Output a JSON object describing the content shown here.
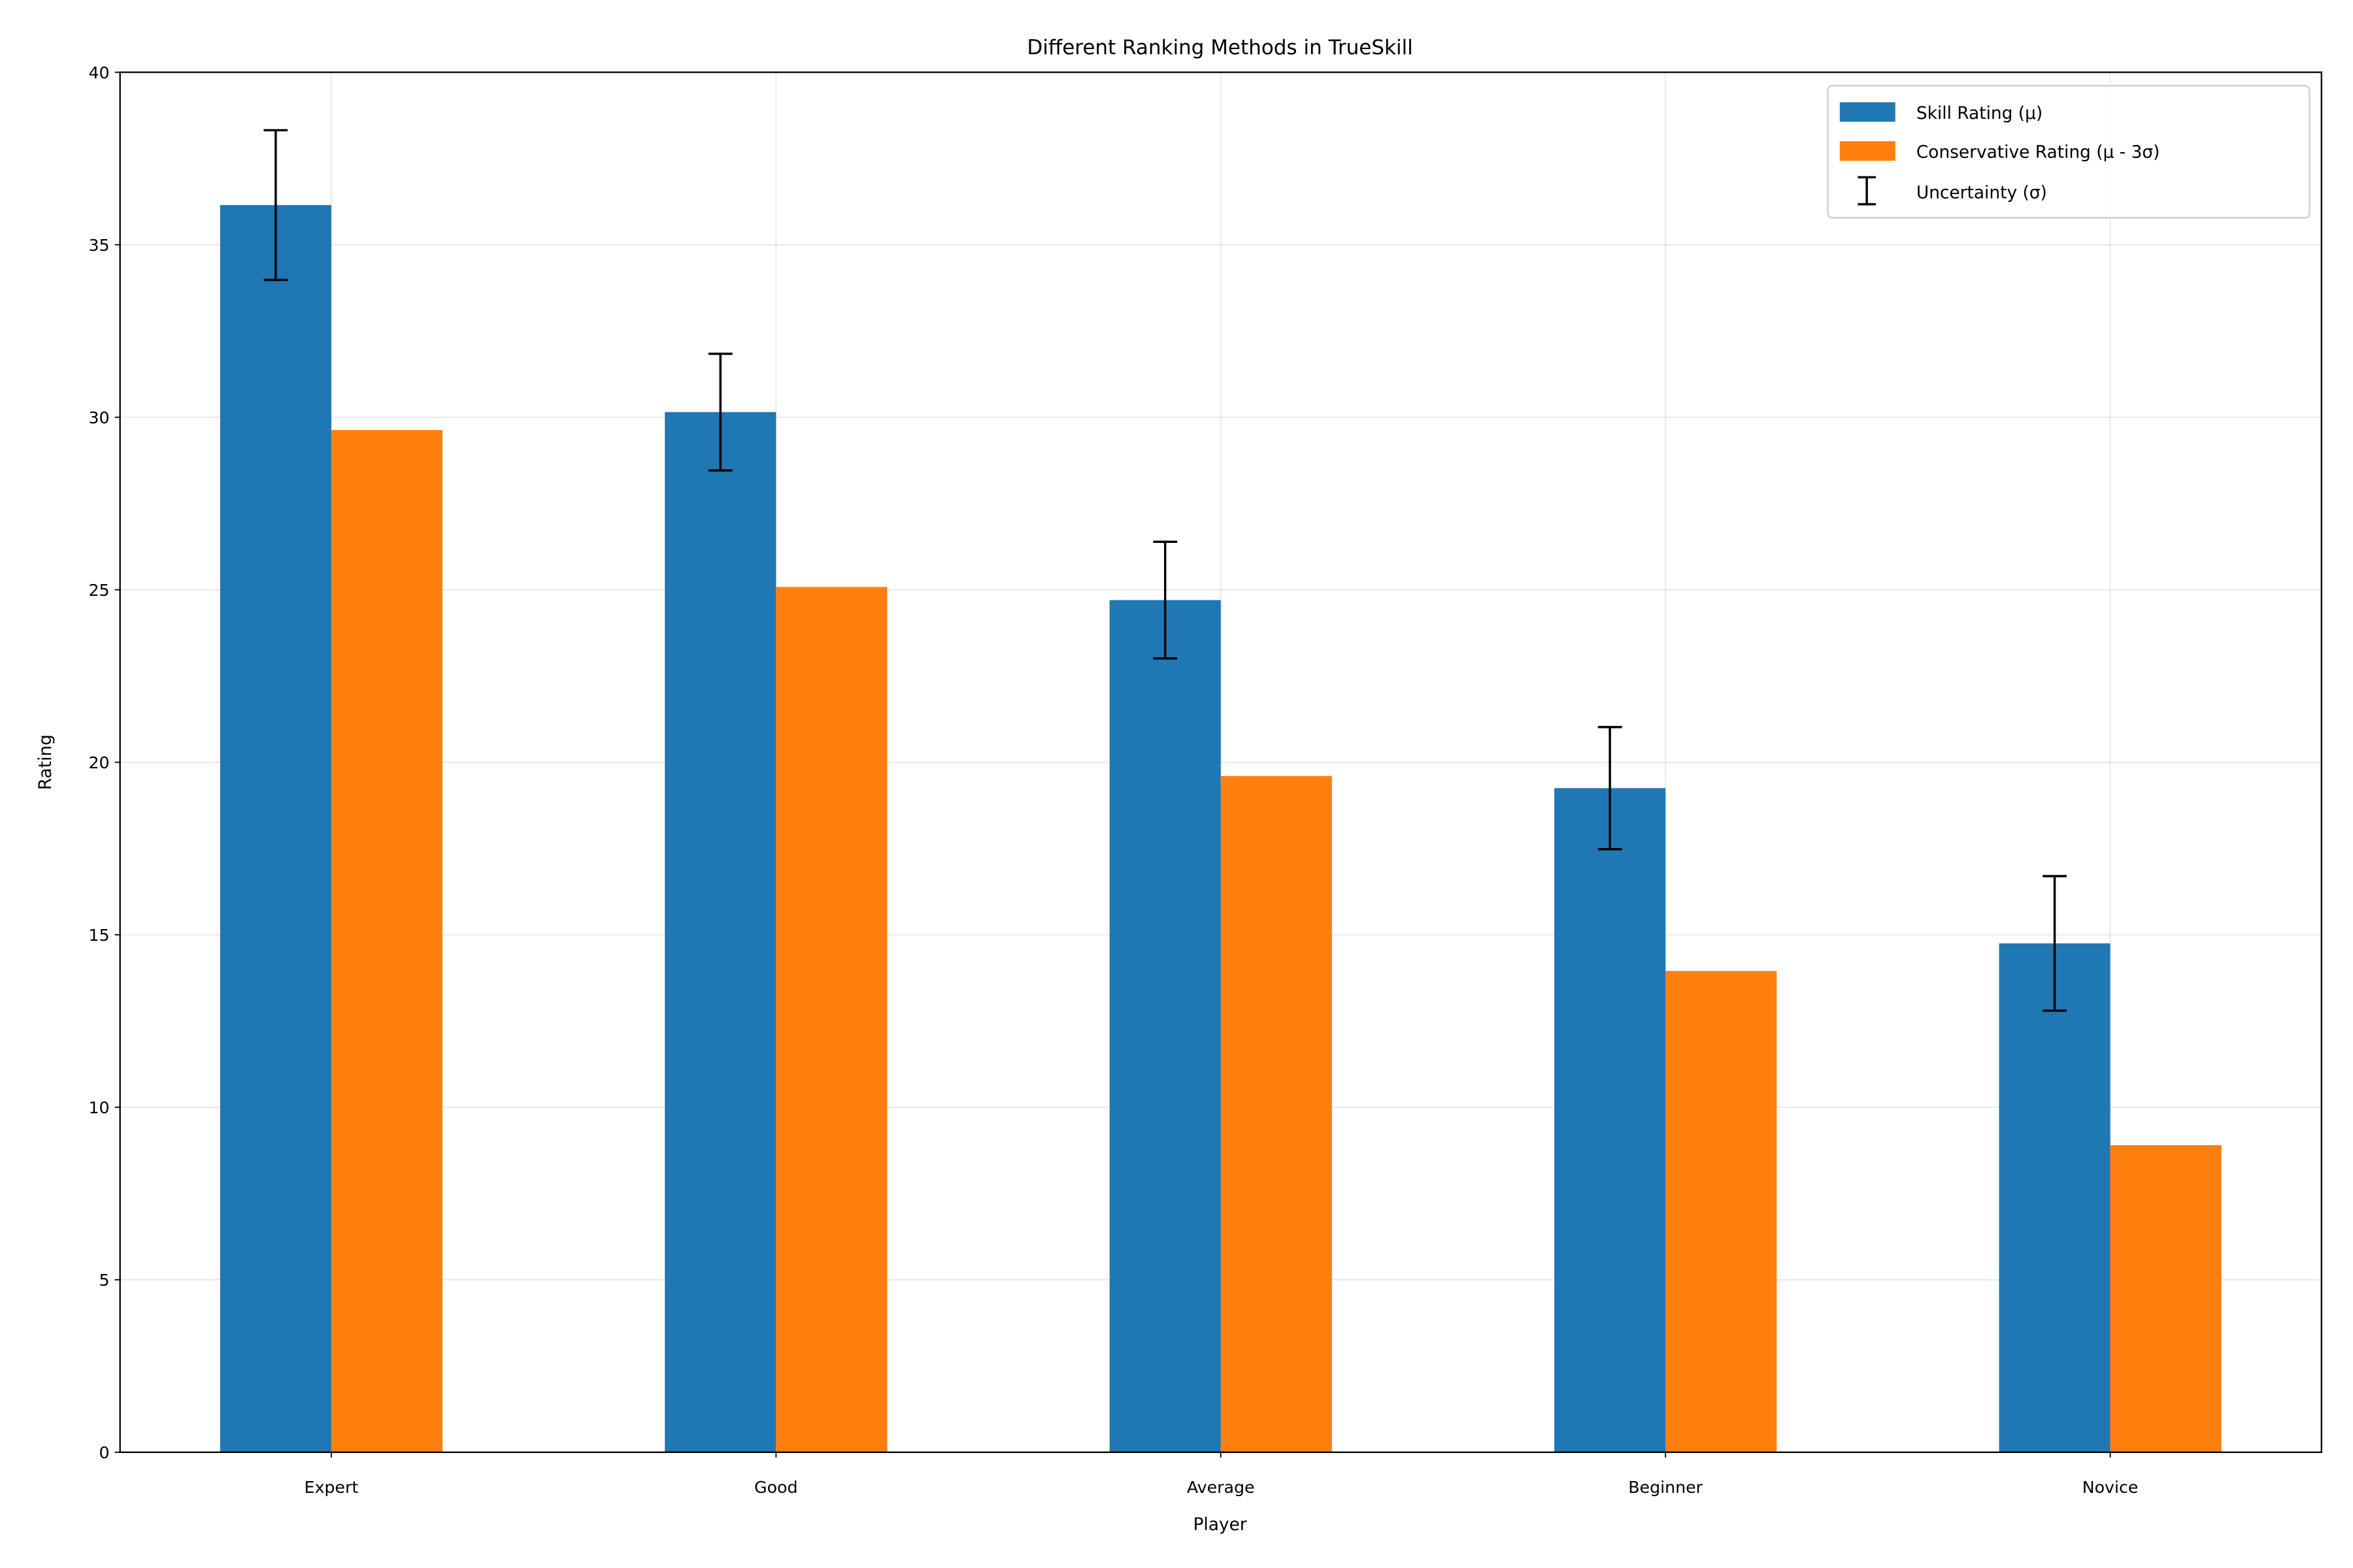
{
  "chart_data": {
    "type": "bar",
    "title": "Different Ranking Methods in TrueSkill",
    "xlabel": "Player",
    "ylabel": "Rating",
    "categories": [
      "Expert",
      "Good",
      "Average",
      "Beginner",
      "Novice"
    ],
    "ylim": [
      0,
      40
    ],
    "yticks": [
      "0",
      "5",
      "10",
      "15",
      "20",
      "25",
      "30",
      "35",
      "40"
    ],
    "grid": true,
    "legend_position": "top-right",
    "series": [
      {
        "name": "Skill Rating (μ)",
        "color": "#1f77b4",
        "values": [
          36.15,
          30.15,
          24.7,
          19.25,
          14.75
        ]
      },
      {
        "name": "Conservative Rating (μ - 3σ)",
        "color": "#ff7f0e",
        "values": [
          29.63,
          25.08,
          19.6,
          13.95,
          8.9
        ]
      }
    ],
    "error_bars": {
      "name": "Uncertainty (σ)",
      "color": "#000000",
      "applies_to": "Skill Rating (μ)",
      "values": [
        2.17,
        1.69,
        1.69,
        1.77,
        1.95
      ]
    }
  }
}
